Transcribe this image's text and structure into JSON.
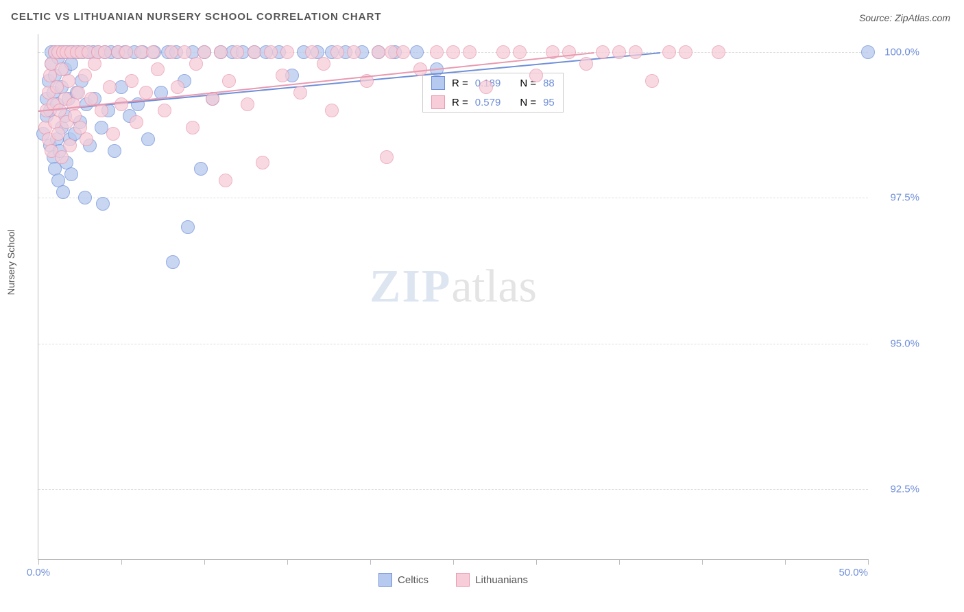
{
  "title": "CELTIC VS LITHUANIAN NURSERY SCHOOL CORRELATION CHART",
  "source": "Source: ZipAtlas.com",
  "ylabel": "Nursery School",
  "watermark": {
    "part1": "ZIP",
    "part2": "atlas"
  },
  "chart": {
    "type": "scatter",
    "background_color": "#ffffff",
    "grid_color": "#dddddd",
    "axis_color": "#bbbbbb",
    "tick_label_color": "#6f8fd8",
    "label_color": "#555555",
    "title_fontsize": 15,
    "label_fontsize": 14,
    "tick_fontsize": 15,
    "marker_radius": 9,
    "marker_stroke_width": 1.5,
    "marker_fill_opacity": 0.18,
    "xlim": [
      0.0,
      50.0
    ],
    "ylim": [
      91.3,
      100.3
    ],
    "xticks": [
      0.0,
      5.0,
      10.0,
      15.0,
      20.0,
      25.0,
      30.0,
      35.0,
      40.0,
      45.0,
      50.0
    ],
    "xtick_labels_shown": {
      "0.0": "0.0%",
      "50.0": "50.0%"
    },
    "yticks": [
      92.5,
      95.0,
      97.5,
      100.0
    ],
    "ytick_labels": [
      "92.5%",
      "95.0%",
      "97.5%",
      "100.0%"
    ],
    "series": [
      {
        "label": "Celtics",
        "stroke": "#6f8fd8",
        "fill": "#b6c9ee",
        "R": 0.189,
        "N": 88,
        "trend": {
          "x1": 0.0,
          "y1": 99.0,
          "x2": 37.5,
          "y2": 100.0,
          "color": "#6f8fd8",
          "width": 2
        },
        "points": [
          [
            0.3,
            98.6
          ],
          [
            0.5,
            98.9
          ],
          [
            0.5,
            99.2
          ],
          [
            0.6,
            99.5
          ],
          [
            0.7,
            98.4
          ],
          [
            0.7,
            99.0
          ],
          [
            0.8,
            99.8
          ],
          [
            0.8,
            100.0
          ],
          [
            0.9,
            98.2
          ],
          [
            0.9,
            99.3
          ],
          [
            1.0,
            98.0
          ],
          [
            1.0,
            99.6
          ],
          [
            1.0,
            100.0
          ],
          [
            1.1,
            98.5
          ],
          [
            1.1,
            99.1
          ],
          [
            1.2,
            97.8
          ],
          [
            1.2,
            99.9
          ],
          [
            1.3,
            98.3
          ],
          [
            1.3,
            100.0
          ],
          [
            1.4,
            98.7
          ],
          [
            1.4,
            99.4
          ],
          [
            1.5,
            97.6
          ],
          [
            1.5,
            100.0
          ],
          [
            1.6,
            98.9
          ],
          [
            1.6,
            99.7
          ],
          [
            1.7,
            98.1
          ],
          [
            1.7,
            100.0
          ],
          [
            1.8,
            99.2
          ],
          [
            1.9,
            98.5
          ],
          [
            1.9,
            100.0
          ],
          [
            2.0,
            97.9
          ],
          [
            2.0,
            99.8
          ],
          [
            2.1,
            100.0
          ],
          [
            2.2,
            98.6
          ],
          [
            2.3,
            99.3
          ],
          [
            2.4,
            100.0
          ],
          [
            2.5,
            98.8
          ],
          [
            2.6,
            99.5
          ],
          [
            2.7,
            100.0
          ],
          [
            2.8,
            97.5
          ],
          [
            2.9,
            99.1
          ],
          [
            3.0,
            100.0
          ],
          [
            3.1,
            98.4
          ],
          [
            3.3,
            100.0
          ],
          [
            3.4,
            99.2
          ],
          [
            3.6,
            100.0
          ],
          [
            3.8,
            98.7
          ],
          [
            3.9,
            97.4
          ],
          [
            4.0,
            100.0
          ],
          [
            4.2,
            99.0
          ],
          [
            4.4,
            100.0
          ],
          [
            4.6,
            98.3
          ],
          [
            4.8,
            100.0
          ],
          [
            5.0,
            99.4
          ],
          [
            5.2,
            100.0
          ],
          [
            5.5,
            98.9
          ],
          [
            5.8,
            100.0
          ],
          [
            6.0,
            99.1
          ],
          [
            6.3,
            100.0
          ],
          [
            6.6,
            98.5
          ],
          [
            7.0,
            100.0
          ],
          [
            7.4,
            99.3
          ],
          [
            7.8,
            100.0
          ],
          [
            8.1,
            96.4
          ],
          [
            8.3,
            100.0
          ],
          [
            8.8,
            99.5
          ],
          [
            9.0,
            97.0
          ],
          [
            9.3,
            100.0
          ],
          [
            9.8,
            98.0
          ],
          [
            10.0,
            100.0
          ],
          [
            10.5,
            99.2
          ],
          [
            11.0,
            100.0
          ],
          [
            11.7,
            100.0
          ],
          [
            12.3,
            100.0
          ],
          [
            13.0,
            100.0
          ],
          [
            13.7,
            100.0
          ],
          [
            14.5,
            100.0
          ],
          [
            15.3,
            99.6
          ],
          [
            16.0,
            100.0
          ],
          [
            16.8,
            100.0
          ],
          [
            17.7,
            100.0
          ],
          [
            18.5,
            100.0
          ],
          [
            19.5,
            100.0
          ],
          [
            20.5,
            100.0
          ],
          [
            21.5,
            100.0
          ],
          [
            22.8,
            100.0
          ],
          [
            24.0,
            99.7
          ],
          [
            50.0,
            100.0
          ]
        ]
      },
      {
        "label": "Lithuanians",
        "stroke": "#e99ab0",
        "fill": "#f6cdd8",
        "R": 0.579,
        "N": 95,
        "trend": {
          "x1": 0.0,
          "y1": 99.0,
          "x2": 33.5,
          "y2": 100.0,
          "color": "#e99ab0",
          "width": 2
        },
        "points": [
          [
            0.4,
            98.7
          ],
          [
            0.5,
            99.0
          ],
          [
            0.6,
            99.3
          ],
          [
            0.6,
            98.5
          ],
          [
            0.7,
            99.6
          ],
          [
            0.8,
            98.3
          ],
          [
            0.8,
            99.8
          ],
          [
            0.9,
            99.1
          ],
          [
            1.0,
            98.8
          ],
          [
            1.0,
            100.0
          ],
          [
            1.1,
            99.4
          ],
          [
            1.2,
            98.6
          ],
          [
            1.2,
            100.0
          ],
          [
            1.3,
            99.0
          ],
          [
            1.4,
            99.7
          ],
          [
            1.4,
            98.2
          ],
          [
            1.5,
            100.0
          ],
          [
            1.6,
            99.2
          ],
          [
            1.7,
            98.8
          ],
          [
            1.7,
            100.0
          ],
          [
            1.8,
            99.5
          ],
          [
            1.9,
            98.4
          ],
          [
            2.0,
            100.0
          ],
          [
            2.1,
            99.1
          ],
          [
            2.2,
            98.9
          ],
          [
            2.3,
            100.0
          ],
          [
            2.4,
            99.3
          ],
          [
            2.5,
            98.7
          ],
          [
            2.6,
            100.0
          ],
          [
            2.8,
            99.6
          ],
          [
            2.9,
            98.5
          ],
          [
            3.0,
            100.0
          ],
          [
            3.2,
            99.2
          ],
          [
            3.4,
            99.8
          ],
          [
            3.6,
            100.0
          ],
          [
            3.8,
            99.0
          ],
          [
            4.0,
            100.0
          ],
          [
            4.3,
            99.4
          ],
          [
            4.5,
            98.6
          ],
          [
            4.8,
            100.0
          ],
          [
            5.0,
            99.1
          ],
          [
            5.3,
            100.0
          ],
          [
            5.6,
            99.5
          ],
          [
            5.9,
            98.8
          ],
          [
            6.2,
            100.0
          ],
          [
            6.5,
            99.3
          ],
          [
            6.9,
            100.0
          ],
          [
            7.2,
            99.7
          ],
          [
            7.6,
            99.0
          ],
          [
            8.0,
            100.0
          ],
          [
            8.4,
            99.4
          ],
          [
            8.8,
            100.0
          ],
          [
            9.3,
            98.7
          ],
          [
            9.5,
            99.8
          ],
          [
            10.0,
            100.0
          ],
          [
            10.5,
            99.2
          ],
          [
            11.0,
            100.0
          ],
          [
            11.3,
            97.8
          ],
          [
            11.5,
            99.5
          ],
          [
            12.0,
            100.0
          ],
          [
            12.6,
            99.1
          ],
          [
            13.0,
            100.0
          ],
          [
            13.5,
            98.1
          ],
          [
            14.0,
            100.0
          ],
          [
            14.7,
            99.6
          ],
          [
            15.0,
            100.0
          ],
          [
            15.8,
            99.3
          ],
          [
            16.5,
            100.0
          ],
          [
            17.2,
            99.8
          ],
          [
            17.7,
            99.0
          ],
          [
            18.0,
            100.0
          ],
          [
            19.0,
            100.0
          ],
          [
            19.8,
            99.5
          ],
          [
            20.5,
            100.0
          ],
          [
            21.0,
            98.2
          ],
          [
            21.3,
            100.0
          ],
          [
            22.0,
            100.0
          ],
          [
            23.0,
            99.7
          ],
          [
            24.0,
            100.0
          ],
          [
            25.0,
            100.0
          ],
          [
            26.0,
            100.0
          ],
          [
            27.0,
            99.4
          ],
          [
            28.0,
            100.0
          ],
          [
            29.0,
            100.0
          ],
          [
            30.0,
            99.6
          ],
          [
            31.0,
            100.0
          ],
          [
            32.0,
            100.0
          ],
          [
            33.0,
            99.8
          ],
          [
            34.0,
            100.0
          ],
          [
            35.0,
            100.0
          ],
          [
            36.0,
            100.0
          ],
          [
            37.0,
            99.5
          ],
          [
            38.0,
            100.0
          ],
          [
            39.0,
            100.0
          ],
          [
            41.0,
            100.0
          ]
        ]
      }
    ],
    "stats_box": {
      "border_color": "#cccccc",
      "background": "#ffffff",
      "label_color": "#555555",
      "value_color": "#6f8fd8",
      "rows": [
        {
          "swatch_fill": "#b6c9ee",
          "swatch_stroke": "#6f8fd8",
          "R_label": "R =",
          "R_value": "0.189",
          "N_label": "N =",
          "N_value": "88"
        },
        {
          "swatch_fill": "#f6cdd8",
          "swatch_stroke": "#e99ab0",
          "R_label": "R =",
          "R_value": "0.579",
          "N_label": "N =",
          "N_value": "95"
        }
      ]
    },
    "bottom_legend": [
      {
        "swatch_fill": "#b6c9ee",
        "swatch_stroke": "#6f8fd8",
        "label": "Celtics"
      },
      {
        "swatch_fill": "#f6cdd8",
        "swatch_stroke": "#e99ab0",
        "label": "Lithuanians"
      }
    ]
  }
}
